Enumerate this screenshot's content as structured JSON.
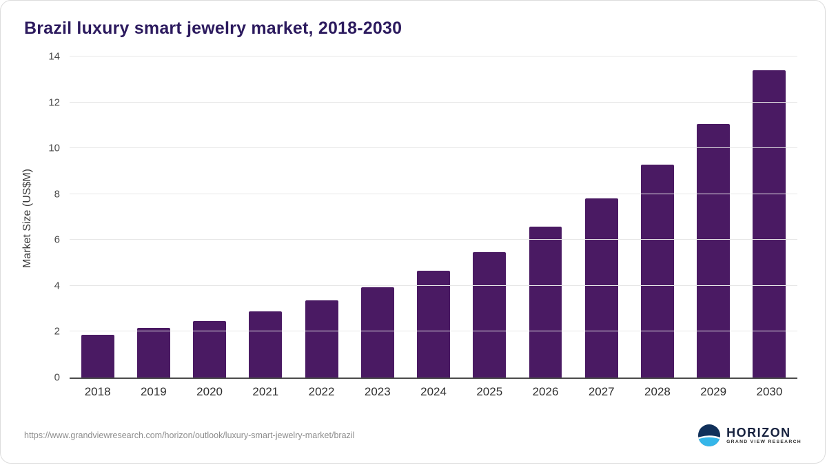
{
  "chart_data": {
    "type": "bar",
    "title": "Brazil luxury smart jewelry market, 2018-2030",
    "categories": [
      "2018",
      "2019",
      "2020",
      "2021",
      "2022",
      "2023",
      "2024",
      "2025",
      "2026",
      "2027",
      "2028",
      "2029",
      "2030"
    ],
    "values": [
      1.87,
      2.17,
      2.47,
      2.88,
      3.36,
      3.95,
      4.67,
      5.47,
      6.58,
      7.8,
      9.27,
      11.07,
      13.4
    ],
    "xlabel": "",
    "ylabel": "Market Size (US$M)",
    "ylim": [
      0,
      14
    ],
    "y_ticks": [
      0,
      2,
      4,
      6,
      8,
      10,
      12,
      14
    ],
    "grid": "horizontal",
    "legend": "none",
    "bar_color": "#4a1a63"
  },
  "footer": {
    "source": "https://www.grandviewresearch.com/horizon/outlook/luxury-smart-jewelry-market/brazil",
    "logo_title": "HORIZON",
    "logo_subtitle": "GRAND VIEW RESEARCH"
  }
}
